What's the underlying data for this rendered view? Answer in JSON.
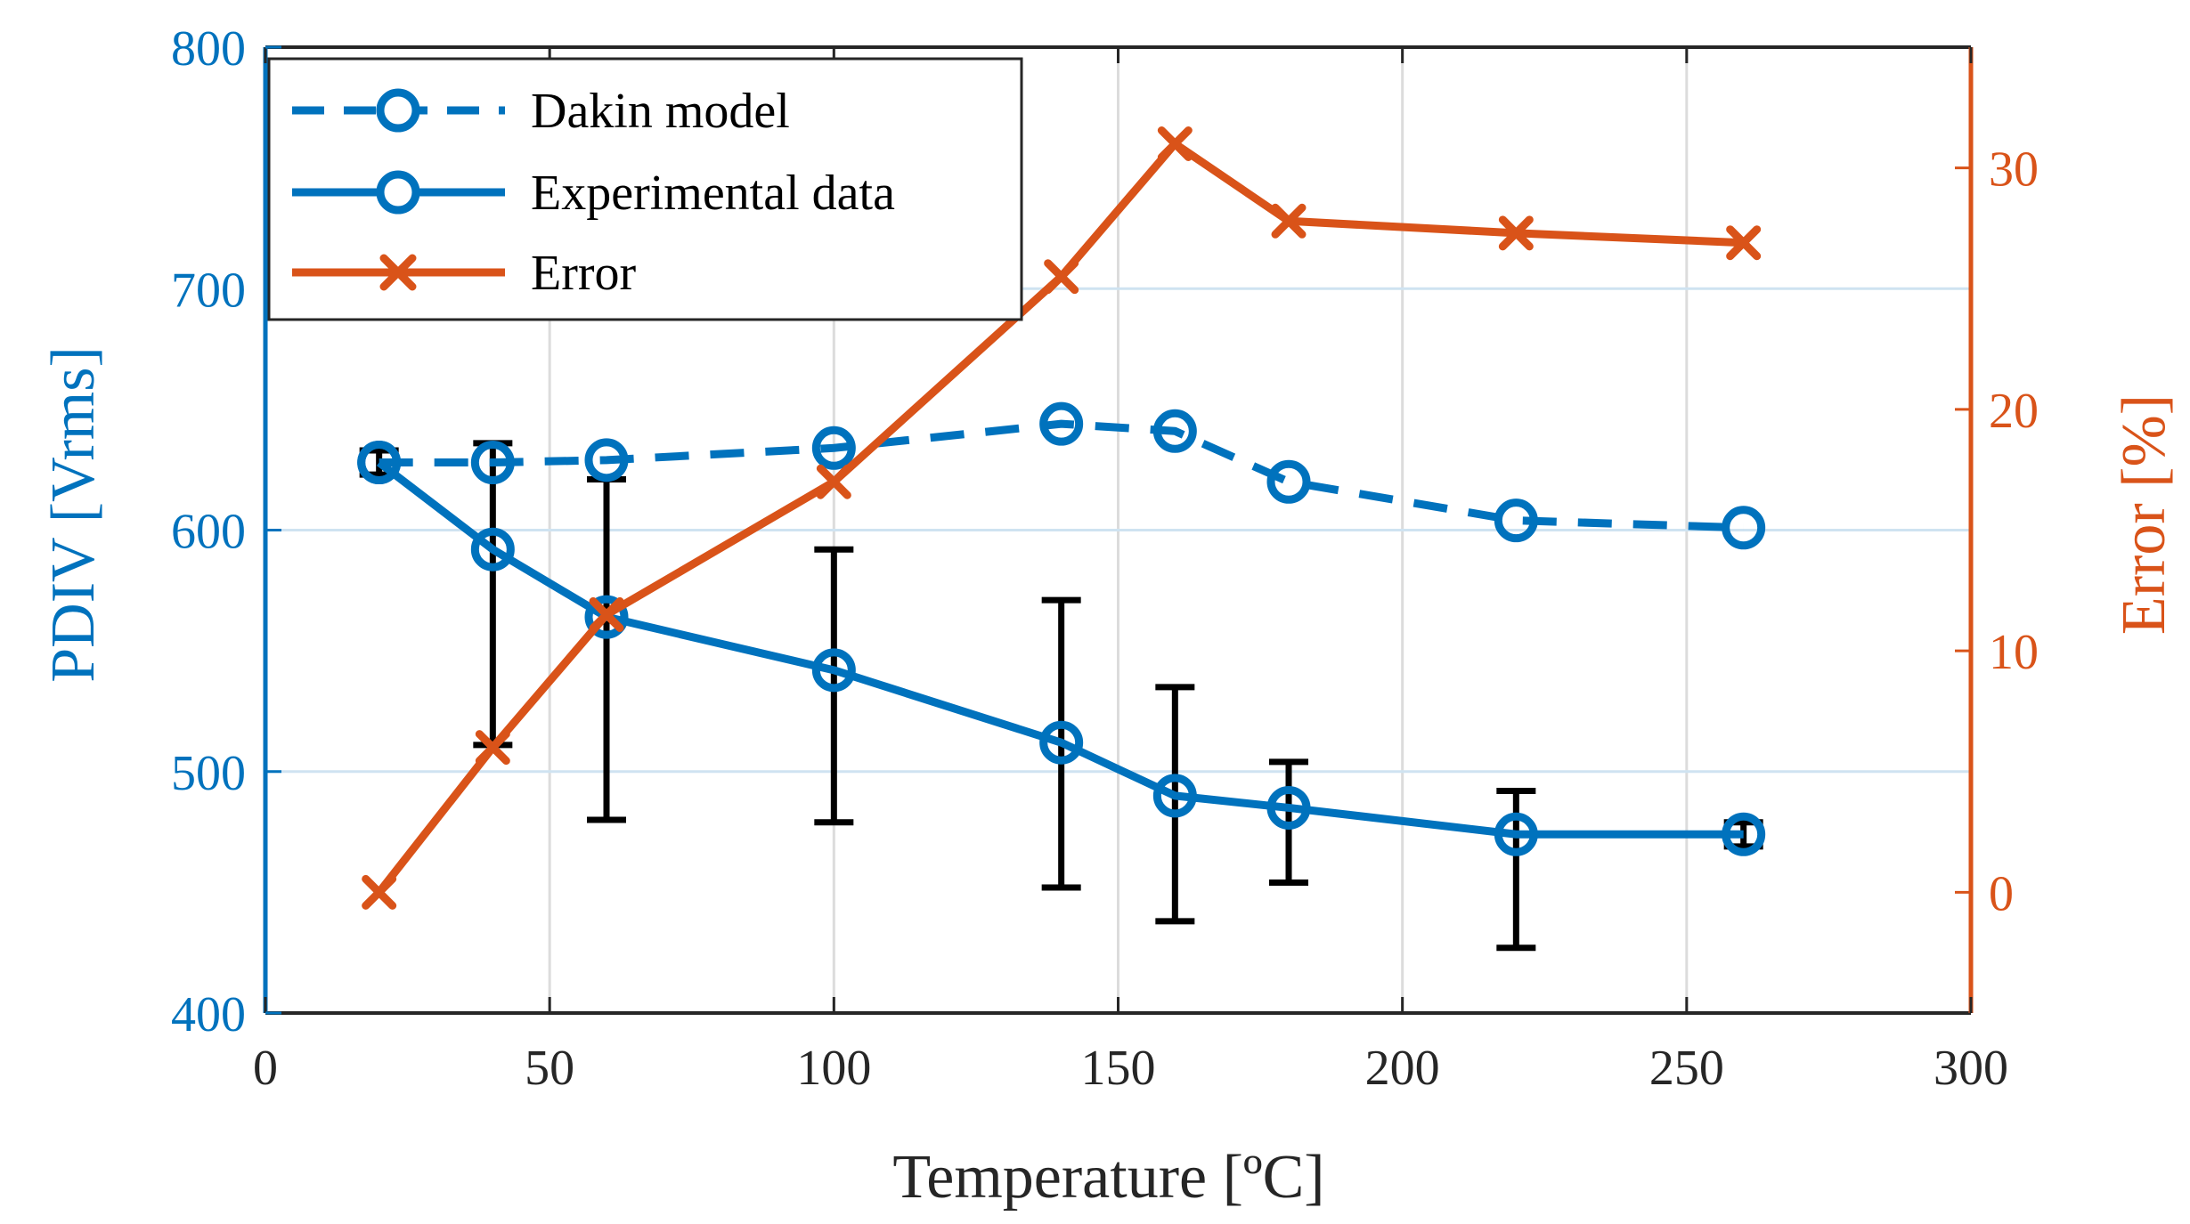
{
  "chart_data": {
    "type": "line",
    "xlabel": "Temperature [ºC]",
    "ylabel_left": "PDIV [Vrms]",
    "ylabel_right": "Error [%]",
    "xlim": [
      0,
      300
    ],
    "ylim_left": [
      400,
      800
    ],
    "ylim_right": [
      -5,
      35
    ],
    "x_ticks": [
      "0",
      "50",
      "100",
      "150",
      "200",
      "250",
      "300"
    ],
    "y_left_ticks": [
      "400",
      "500",
      "600",
      "700",
      "800"
    ],
    "y_right_ticks": [
      "0",
      "10",
      "20",
      "30"
    ],
    "grid": true,
    "legend_position": "top-left",
    "x": [
      20,
      40,
      60,
      100,
      140,
      160,
      180,
      220,
      260
    ],
    "series": [
      {
        "name": "Dakin model",
        "axis": "left",
        "style": "dashed",
        "marker": "circle",
        "color": "#0072bd",
        "values": [
          628,
          628,
          629,
          634,
          644,
          641,
          620,
          604,
          601
        ]
      },
      {
        "name": "Experimental data",
        "axis": "left",
        "style": "solid",
        "marker": "circle",
        "color": "#0072bd",
        "values": [
          628,
          592,
          564,
          542,
          512,
          490,
          485,
          474,
          474
        ],
        "error_low": [
          623,
          511,
          480,
          479,
          452,
          438,
          454,
          427,
          469
        ],
        "error_high": [
          633,
          636,
          621,
          592,
          571,
          535,
          504,
          492,
          479
        ]
      },
      {
        "name": "Error",
        "axis": "right",
        "style": "solid",
        "marker": "x",
        "color": "#d95319",
        "values": [
          0,
          6,
          11.5,
          17,
          25.5,
          31,
          27.8,
          27.3,
          26.9
        ]
      }
    ]
  }
}
